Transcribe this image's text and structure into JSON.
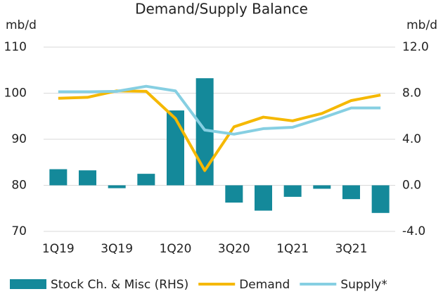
{
  "chart_data": {
    "type": "bar-line",
    "title": "Demand/Supply Balance",
    "y_label": "mb/d",
    "y2_label": "mb/d",
    "categories": [
      "1Q19",
      null,
      "3Q19",
      null,
      "1Q20",
      null,
      "3Q20",
      null,
      "1Q21",
      null,
      "3Q21",
      null
    ],
    "ylim": [
      70,
      110
    ],
    "yticks": [
      70,
      80,
      90,
      100,
      110
    ],
    "y2lim": [
      -4,
      12
    ],
    "y2ticks": [
      {
        "value": -4,
        "label": "-4.0"
      },
      {
        "value": 0,
        "label": "0.0"
      },
      {
        "value": 4,
        "label": "4.0"
      },
      {
        "value": 8,
        "label": "8.0"
      },
      {
        "value": 12,
        "label": "12.0"
      }
    ],
    "grid": true,
    "series": [
      {
        "name": "Stock Ch. & Misc (RHS)",
        "type": "bar",
        "axis": "y2",
        "color": "#14899a",
        "values": [
          1.4,
          1.3,
          -0.25,
          1.0,
          6.5,
          9.3,
          -1.5,
          -2.2,
          -1.0,
          -0.3,
          -1.2,
          -2.4
        ]
      },
      {
        "name": "Demand",
        "type": "line",
        "color": "#f5b800",
        "values": [
          98.9,
          99.1,
          100.5,
          100.4,
          94.5,
          83.2,
          92.7,
          94.8,
          94.0,
          95.6,
          98.4,
          99.6
        ]
      },
      {
        "name": "Supply*",
        "type": "line",
        "color": "#86cfe2",
        "values": [
          100.3,
          100.3,
          100.4,
          101.5,
          100.5,
          92.0,
          91.1,
          92.3,
          92.6,
          94.6,
          96.8,
          96.8
        ]
      }
    ]
  }
}
